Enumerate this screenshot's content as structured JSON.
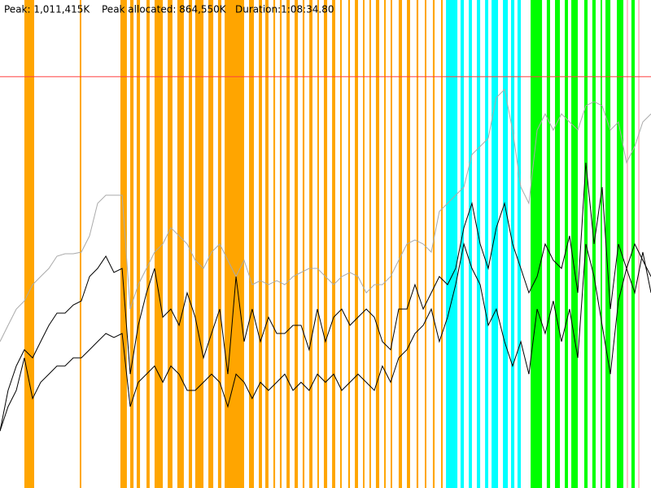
{
  "chart_data": {
    "type": "line",
    "peak": {
      "value": 1011415,
      "label": "Peak: 1,011,415K"
    },
    "peak_color": "#ff4040",
    "peak_allocated": {
      "value": 864550,
      "label": "Peak allocated: 864,550K"
    },
    "duration": {
      "value": 4114.8,
      "label": "Duration:1:08:34.80"
    },
    "xlim": [
      0,
      4114.8
    ],
    "ylim": [
      0,
      1200000
    ],
    "x": [
      0,
      51,
      103,
      154,
      206,
      257,
      309,
      360,
      411,
      463,
      514,
      566,
      617,
      669,
      720,
      772,
      823,
      874,
      926,
      977,
      1029,
      1080,
      1132,
      1183,
      1234,
      1286,
      1337,
      1389,
      1440,
      1492,
      1543,
      1594,
      1646,
      1697,
      1749,
      1800,
      1852,
      1903,
      1954,
      2006,
      2057,
      2109,
      2160,
      2212,
      2263,
      2315,
      2366,
      2417,
      2469,
      2520,
      2572,
      2623,
      2675,
      2726,
      2777,
      2829,
      2880,
      2932,
      2983,
      3035,
      3086,
      3137,
      3189,
      3240,
      3292,
      3343,
      3395,
      3446,
      3497,
      3549,
      3600,
      3652,
      3703,
      3755,
      3806,
      3858,
      3909,
      3960,
      4012,
      4063,
      4115
    ],
    "series": [
      {
        "color": "#aaaaaa",
        "values": [
          360000,
          400000,
          440000,
          460000,
          500000,
          520000,
          540000,
          570000,
          576000,
          576000,
          580000,
          620000,
          700000,
          720000,
          720000,
          720000,
          440000,
          500000,
          540000,
          580000,
          600000,
          640000,
          620000,
          600000,
          560000,
          540000,
          580000,
          600000,
          560000,
          520000,
          560000,
          500000,
          510000,
          500000,
          510000,
          500000,
          520000,
          530000,
          540000,
          540000,
          520000,
          500000,
          520000,
          530000,
          520000,
          480000,
          500000,
          500000,
          520000,
          560000,
          600000,
          610000,
          600000,
          580000,
          680000,
          700000,
          720000,
          740000,
          820000,
          840000,
          860000,
          960000,
          980000,
          880000,
          740000,
          700000,
          880000,
          920000,
          880000,
          920000,
          900000,
          880000,
          940000,
          950000,
          940000,
          880000,
          900000,
          800000,
          840000,
          900000,
          920000
        ]
      },
      {
        "color": "#000000",
        "values": [
          140000,
          240000,
          300000,
          340000,
          320000,
          360000,
          400000,
          430000,
          430000,
          450000,
          460000,
          520000,
          540000,
          570000,
          530000,
          540000,
          280000,
          400000,
          480000,
          540000,
          420000,
          440000,
          400000,
          480000,
          420000,
          320000,
          380000,
          440000,
          280000,
          520000,
          360000,
          440000,
          360000,
          420000,
          380000,
          380000,
          400000,
          400000,
          340000,
          440000,
          360000,
          420000,
          440000,
          400000,
          420000,
          440000,
          420000,
          360000,
          340000,
          440000,
          440000,
          500000,
          440000,
          480000,
          520000,
          500000,
          540000,
          640000,
          700000,
          600000,
          540000,
          640000,
          700000,
          600000,
          540000,
          480000,
          520000,
          600000,
          560000,
          540000,
          620000,
          480000,
          800000,
          600000,
          740000,
          440000,
          600000,
          540000,
          600000,
          560000,
          520000
        ]
      },
      {
        "color": "#000000",
        "values": [
          140000,
          200000,
          240000,
          320000,
          220000,
          260000,
          280000,
          300000,
          300000,
          320000,
          320000,
          340000,
          360000,
          380000,
          370000,
          380000,
          200000,
          260000,
          280000,
          300000,
          260000,
          300000,
          280000,
          240000,
          240000,
          260000,
          280000,
          260000,
          200000,
          280000,
          260000,
          220000,
          260000,
          240000,
          260000,
          280000,
          240000,
          260000,
          240000,
          280000,
          260000,
          280000,
          240000,
          260000,
          280000,
          260000,
          240000,
          300000,
          260000,
          320000,
          340000,
          380000,
          400000,
          440000,
          360000,
          420000,
          500000,
          600000,
          540000,
          500000,
          400000,
          440000,
          360000,
          300000,
          360000,
          280000,
          440000,
          380000,
          460000,
          360000,
          440000,
          320000,
          600000,
          520000,
          400000,
          280000,
          460000,
          540000,
          480000,
          580000,
          480000
        ]
      }
    ],
    "events": [
      {
        "color": "#ffa500",
        "spans": [
          [
            154,
            216
          ],
          [
            504,
            514
          ],
          [
            761,
            802
          ],
          [
            823,
            844
          ],
          [
            864,
            885
          ],
          [
            926,
            946
          ],
          [
            977,
            1029
          ],
          [
            1060,
            1090
          ],
          [
            1121,
            1162
          ],
          [
            1193,
            1214
          ],
          [
            1234,
            1286
          ],
          [
            1317,
            1348
          ],
          [
            1378,
            1399
          ],
          [
            1420,
            1543
          ],
          [
            1574,
            1605
          ],
          [
            1636,
            1656
          ],
          [
            1677,
            1697
          ],
          [
            1728,
            1739
          ],
          [
            1769,
            1780
          ],
          [
            1811,
            1831
          ],
          [
            1862,
            1883
          ],
          [
            1913,
            1924
          ],
          [
            1955,
            1975
          ],
          [
            2006,
            2016
          ],
          [
            2047,
            2068
          ],
          [
            2099,
            2119
          ],
          [
            2150,
            2160
          ],
          [
            2201,
            2212
          ],
          [
            2243,
            2263
          ],
          [
            2294,
            2304
          ],
          [
            2335,
            2345
          ],
          [
            2376,
            2397
          ],
          [
            2428,
            2438
          ],
          [
            2469,
            2479
          ],
          [
            2520,
            2541
          ],
          [
            2572,
            2592
          ],
          [
            2633,
            2644
          ],
          [
            2685,
            2695
          ],
          [
            2736,
            2747
          ],
          [
            2788,
            2798
          ]
        ]
      },
      {
        "color": "#00ffff",
        "spans": [
          [
            2819,
            2891
          ],
          [
            2911,
            2932
          ],
          [
            2963,
            2983
          ],
          [
            3014,
            3035
          ],
          [
            3066,
            3086
          ],
          [
            3107,
            3148
          ],
          [
            3179,
            3210
          ],
          [
            3230,
            3251
          ],
          [
            3271,
            3292
          ]
        ]
      },
      {
        "color": "#00ff00",
        "spans": [
          [
            3354,
            3426
          ],
          [
            3456,
            3477
          ],
          [
            3508,
            3539
          ],
          [
            3570,
            3590
          ],
          [
            3611,
            3652
          ],
          [
            3693,
            3714
          ],
          [
            3744,
            3765
          ],
          [
            3796,
            3806
          ],
          [
            3827,
            3858
          ],
          [
            3899,
            3940
          ],
          [
            3991,
            4012
          ]
        ]
      },
      {
        "color": "#ffc0cb",
        "spans": [
          [
            3960,
            3971
          ],
          [
            4033,
            4043
          ]
        ]
      }
    ]
  }
}
